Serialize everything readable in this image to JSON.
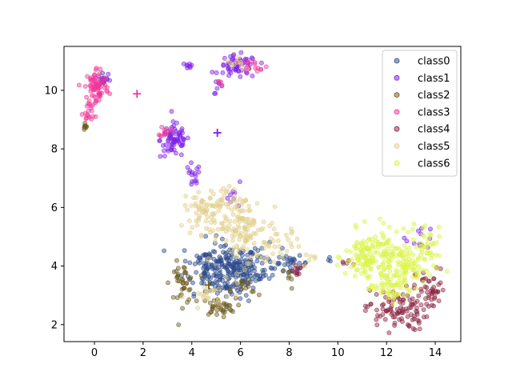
{
  "chart_data": {
    "type": "scatter",
    "xlim": [
      -1.25,
      15.05
    ],
    "ylim": [
      1.42,
      11.5
    ],
    "x_ticks": [
      0,
      2,
      4,
      6,
      8,
      10,
      12,
      14
    ],
    "y_ticks": [
      2,
      4,
      6,
      8,
      10
    ],
    "grid": false,
    "legend_position": "top-right",
    "series": [
      {
        "name": "class0",
        "color": "#2a4a8c",
        "centroid": [
          5.9,
          4.1
        ],
        "clusters": [
          {
            "cx": 5.6,
            "cy": 3.8,
            "sx": 0.55,
            "sy": 0.45,
            "n": 160
          },
          {
            "cx": 4.6,
            "cy": 4.0,
            "sx": 0.5,
            "sy": 0.45,
            "n": 70
          },
          {
            "cx": 6.8,
            "cy": 4.0,
            "sx": 0.45,
            "sy": 0.35,
            "n": 50
          },
          {
            "cx": 8.1,
            "cy": 4.1,
            "sx": 0.35,
            "sy": 0.12,
            "n": 25
          },
          {
            "cx": 0.3,
            "cy": 10.4,
            "sx": 0.12,
            "sy": 0.08,
            "n": 6
          },
          {
            "cx": 9.6,
            "cy": 4.2,
            "sx": 0.1,
            "sy": 0.05,
            "n": 3
          }
        ]
      },
      {
        "name": "class1",
        "color": "#7f1ee8",
        "centroid": [
          5.05,
          8.55
        ],
        "clusters": [
          {
            "cx": 3.3,
            "cy": 8.3,
            "sx": 0.3,
            "sy": 0.3,
            "n": 70
          },
          {
            "cx": 4.0,
            "cy": 7.0,
            "sx": 0.18,
            "sy": 0.25,
            "n": 15
          },
          {
            "cx": 5.9,
            "cy": 10.8,
            "sx": 0.4,
            "sy": 0.2,
            "n": 60
          },
          {
            "cx": 3.9,
            "cy": 10.85,
            "sx": 0.08,
            "sy": 0.05,
            "n": 8
          },
          {
            "cx": 0.4,
            "cy": 10.4,
            "sx": 0.15,
            "sy": 0.08,
            "n": 10
          },
          {
            "cx": 13.4,
            "cy": 5.0,
            "sx": 0.3,
            "sy": 0.2,
            "n": 12
          },
          {
            "cx": 5.8,
            "cy": 6.4,
            "sx": 0.3,
            "sy": 0.2,
            "n": 8
          },
          {
            "cx": 5.1,
            "cy": 10.1,
            "sx": 0.1,
            "sy": 0.1,
            "n": 6
          }
        ]
      },
      {
        "name": "class2",
        "color": "#6b5a1a",
        "centroid": [
          4.7,
          3.35
        ],
        "clusters": [
          {
            "cx": 3.6,
            "cy": 3.4,
            "sx": 0.25,
            "sy": 0.35,
            "n": 40
          },
          {
            "cx": 5.1,
            "cy": 2.6,
            "sx": 0.35,
            "sy": 0.15,
            "n": 35
          },
          {
            "cx": -0.4,
            "cy": 8.75,
            "sx": 0.05,
            "sy": 0.08,
            "n": 8
          },
          {
            "cx": 6.2,
            "cy": 3.2,
            "sx": 0.3,
            "sy": 0.2,
            "n": 15
          },
          {
            "cx": 8.0,
            "cy": 3.6,
            "sx": 0.15,
            "sy": 0.2,
            "n": 8
          }
        ]
      },
      {
        "name": "class3",
        "color": "#f0389a",
        "centroid": [
          1.75,
          9.88
        ],
        "clusters": [
          {
            "cx": 0.1,
            "cy": 10.1,
            "sx": 0.25,
            "sy": 0.35,
            "n": 80
          },
          {
            "cx": -0.25,
            "cy": 9.3,
            "sx": 0.12,
            "sy": 0.2,
            "n": 15
          },
          {
            "cx": 2.9,
            "cy": 8.6,
            "sx": 0.1,
            "sy": 0.1,
            "n": 12
          },
          {
            "cx": 6.6,
            "cy": 10.85,
            "sx": 0.25,
            "sy": 0.1,
            "n": 15
          },
          {
            "cx": 5.1,
            "cy": 10.2,
            "sx": 0.1,
            "sy": 0.1,
            "n": 4
          }
        ]
      },
      {
        "name": "class4",
        "color": "#8c2440",
        "centroid": [
          12.3,
          3.08
        ],
        "clusters": [
          {
            "cx": 12.4,
            "cy": 2.5,
            "sx": 0.65,
            "sy": 0.35,
            "n": 100
          },
          {
            "cx": 13.8,
            "cy": 3.2,
            "sx": 0.3,
            "sy": 0.35,
            "n": 40
          },
          {
            "cx": 8.4,
            "cy": 3.8,
            "sx": 0.2,
            "sy": 0.12,
            "n": 10
          },
          {
            "cx": 10.3,
            "cy": 4.1,
            "sx": 0.15,
            "sy": 0.05,
            "n": 5
          }
        ]
      },
      {
        "name": "class5",
        "color": "#e2cf8a",
        "centroid": [
          5.9,
          4.6
        ],
        "clusters": [
          {
            "cx": 4.7,
            "cy": 5.9,
            "sx": 0.5,
            "sy": 0.4,
            "n": 80
          },
          {
            "cx": 6.1,
            "cy": 5.3,
            "sx": 0.5,
            "sy": 0.6,
            "n": 120
          },
          {
            "cx": 7.5,
            "cy": 4.8,
            "sx": 0.5,
            "sy": 0.3,
            "n": 30
          },
          {
            "cx": 6.0,
            "cy": 10.9,
            "sx": 0.3,
            "sy": 0.1,
            "n": 10
          },
          {
            "cx": 8.9,
            "cy": 4.3,
            "sx": 0.2,
            "sy": 0.1,
            "n": 6
          },
          {
            "cx": 4.8,
            "cy": 3.0,
            "sx": 0.5,
            "sy": 0.2,
            "n": 20
          }
        ]
      },
      {
        "name": "class6",
        "color": "#dcf54a",
        "centroid": [
          12.3,
          3.08
        ],
        "clusters": [
          {
            "cx": 11.3,
            "cy": 4.3,
            "sx": 0.5,
            "sy": 0.45,
            "n": 140
          },
          {
            "cx": 12.7,
            "cy": 4.0,
            "sx": 0.6,
            "sy": 0.45,
            "n": 120
          },
          {
            "cx": 13.6,
            "cy": 4.9,
            "sx": 0.3,
            "sy": 0.3,
            "n": 30
          },
          {
            "cx": 12.2,
            "cy": 3.3,
            "sx": 0.5,
            "sy": 0.25,
            "n": 30
          }
        ]
      }
    ]
  }
}
